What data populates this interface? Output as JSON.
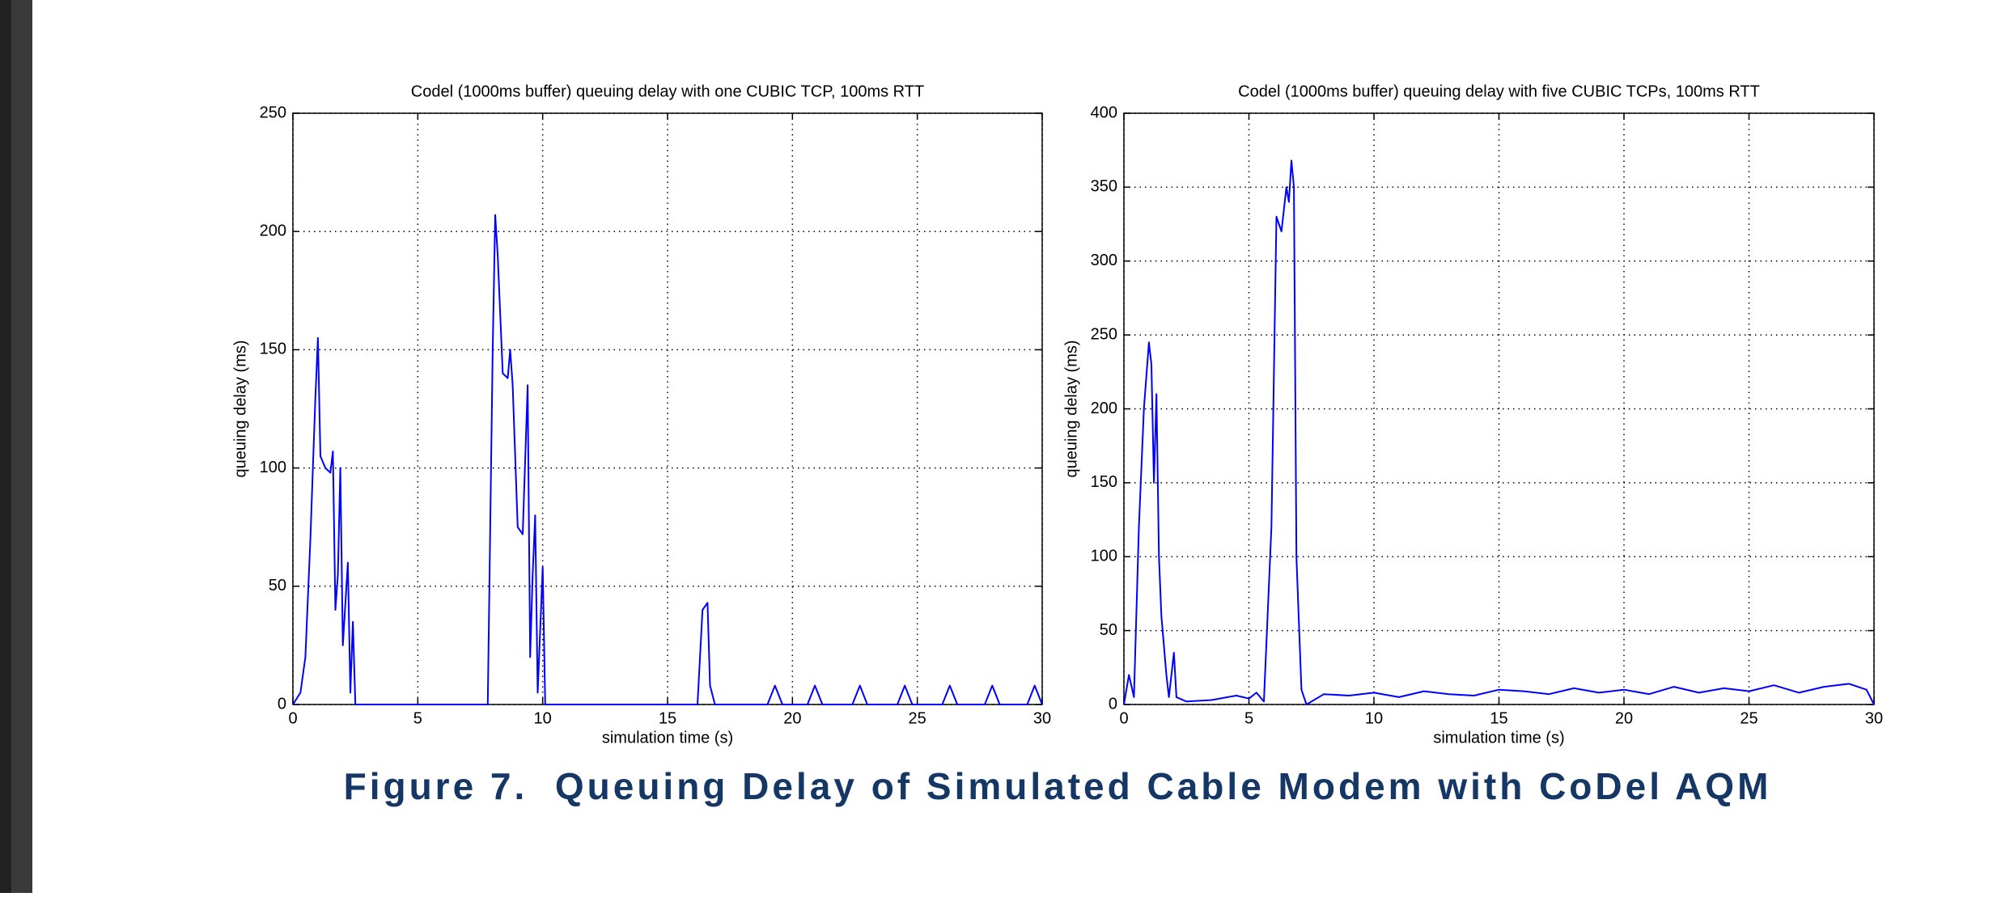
{
  "chart_data": [
    {
      "type": "line",
      "title": "Codel (1000ms buffer) queuing delay with one CUBIC TCP, 100ms RTT",
      "x_label": "simulation time (s)",
      "y_label": "queuing delay (ms)",
      "xlim": [
        0,
        30
      ],
      "xticks": [
        0,
        5,
        10,
        15,
        20,
        25,
        30
      ],
      "ylim": [
        0,
        250
      ],
      "yticks": [
        0,
        50,
        100,
        150,
        200,
        250
      ],
      "grid": true,
      "series": [
        {
          "color": "#0000ff",
          "x": [
            0,
            0.3,
            0.5,
            0.7,
            0.9,
            1.0,
            1.1,
            1.3,
            1.5,
            1.6,
            1.7,
            1.8,
            1.9,
            2.0,
            2.2,
            2.3,
            2.4,
            2.5,
            7.8,
            8.0,
            8.1,
            8.2,
            8.4,
            8.6,
            8.7,
            8.8,
            9.0,
            9.2,
            9.4,
            9.5,
            9.6,
            9.7,
            9.8,
            10.0,
            10.1,
            16.2,
            16.4,
            16.6,
            16.7,
            16.9,
            19.0,
            19.3,
            19.6,
            20.6,
            20.9,
            21.2,
            22.4,
            22.7,
            23.0,
            24.2,
            24.5,
            24.8,
            26.0,
            26.3,
            26.6,
            27.7,
            28.0,
            28.3,
            29.4,
            29.7,
            30
          ],
          "values": [
            0,
            5,
            20,
            70,
            130,
            155,
            105,
            100,
            98,
            107,
            40,
            55,
            100,
            25,
            60,
            5,
            35,
            0,
            0,
            150,
            207,
            190,
            140,
            138,
            150,
            135,
            75,
            72,
            135,
            20,
            55,
            80,
            5,
            58,
            0,
            0,
            40,
            43,
            8,
            0,
            0,
            8,
            0,
            0,
            8,
            0,
            0,
            8,
            0,
            0,
            8,
            0,
            0,
            8,
            0,
            0,
            8,
            0,
            0,
            8,
            0
          ]
        }
      ]
    },
    {
      "type": "line",
      "title": "Codel (1000ms buffer) queuing delay with five CUBIC TCPs, 100ms RTT",
      "x_label": "simulation time (s)",
      "y_label": "queuing delay (ms)",
      "xlim": [
        0,
        30
      ],
      "xticks": [
        0,
        5,
        10,
        15,
        20,
        25,
        30
      ],
      "ylim": [
        0,
        400
      ],
      "yticks": [
        0,
        50,
        100,
        150,
        200,
        250,
        300,
        350,
        400
      ],
      "grid": true,
      "series": [
        {
          "color": "#0000ff",
          "x": [
            0,
            0.2,
            0.4,
            0.6,
            0.8,
            1.0,
            1.1,
            1.2,
            1.3,
            1.4,
            1.5,
            1.7,
            1.8,
            2.0,
            2.1,
            2.5,
            3.5,
            4.5,
            5.0,
            5.3,
            5.6,
            5.9,
            6.1,
            6.3,
            6.5,
            6.6,
            6.7,
            6.8,
            6.9,
            7.1,
            7.3,
            8,
            9,
            10,
            11,
            12,
            13,
            14,
            15,
            16,
            17,
            18,
            19,
            20,
            21,
            22,
            23,
            24,
            25,
            26,
            27,
            28,
            29,
            29.7,
            30
          ],
          "values": [
            0,
            20,
            5,
            120,
            200,
            245,
            230,
            150,
            210,
            100,
            60,
            20,
            5,
            35,
            5,
            2,
            3,
            6,
            4,
            8,
            2,
            120,
            330,
            320,
            350,
            340,
            368,
            350,
            100,
            10,
            0,
            7,
            6,
            8,
            5,
            9,
            7,
            6,
            10,
            9,
            7,
            11,
            8,
            10,
            7,
            12,
            8,
            11,
            9,
            13,
            8,
            12,
            14,
            10,
            0
          ]
        }
      ]
    }
  ],
  "caption": "Figure 7.  Queuing Delay of Simulated Cable Modem with CoDel AQM"
}
